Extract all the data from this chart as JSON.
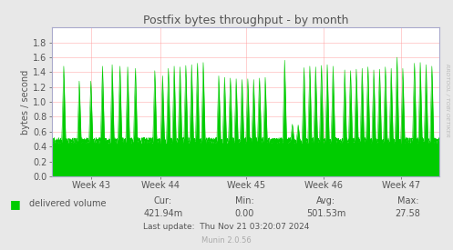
{
  "title": "Postfix bytes throughput - by month",
  "ylabel": "bytes / second",
  "bg_color": "#e8e8e8",
  "plot_bg_color": "#ffffff",
  "grid_color": "#ff9999",
  "line_color": "#00cc00",
  "fill_color": "#00cc00",
  "axis_color": "#aaaacc",
  "text_color": "#555555",
  "legend_label": "delivered volume",
  "legend_color": "#00cc00",
  "cur_val": "421.94m",
  "min_val": "0.00",
  "avg_val": "501.53m",
  "max_val": "27.58",
  "last_update": "Last update:  Thu Nov 21 03:20:07 2024",
  "munin_version": "Munin 2.0.56",
  "rrdtool_label": "RRDTOOL / TOBI OETIKER",
  "x_labels": [
    "Week 43",
    "Week 44",
    "Week 45",
    "Week 46",
    "Week 47"
  ],
  "ylim": [
    0.0,
    2.0
  ],
  "yticks": [
    0.0,
    0.2,
    0.4,
    0.6,
    0.8,
    1.0,
    1.2,
    1.4,
    1.6,
    1.8
  ],
  "base_value": 0.46,
  "spike_positions": [
    0.03,
    0.07,
    0.1,
    0.13,
    0.155,
    0.175,
    0.195,
    0.215,
    0.265,
    0.285,
    0.3,
    0.315,
    0.33,
    0.345,
    0.36,
    0.375,
    0.39,
    0.43,
    0.445,
    0.46,
    0.475,
    0.49,
    0.505,
    0.52,
    0.535,
    0.55,
    0.6,
    0.62,
    0.635,
    0.65,
    0.665,
    0.68,
    0.695,
    0.71,
    0.725,
    0.755,
    0.77,
    0.785,
    0.8,
    0.815,
    0.83,
    0.845,
    0.86,
    0.875,
    0.89,
    0.905,
    0.935,
    0.95,
    0.965,
    0.98
  ],
  "spike_heights": [
    1.48,
    1.28,
    1.28,
    1.48,
    1.5,
    1.48,
    1.47,
    1.45,
    1.42,
    1.35,
    1.45,
    1.48,
    1.47,
    1.49,
    1.5,
    1.52,
    1.53,
    1.35,
    1.33,
    1.32,
    1.31,
    1.3,
    1.31,
    1.3,
    1.32,
    1.33,
    1.56,
    0.7,
    0.69,
    1.46,
    1.48,
    1.47,
    1.49,
    1.5,
    1.48,
    1.43,
    1.42,
    1.44,
    1.45,
    1.47,
    1.43,
    1.44,
    1.47,
    1.45,
    1.6,
    1.45,
    1.52,
    1.53,
    1.5,
    1.48
  ]
}
